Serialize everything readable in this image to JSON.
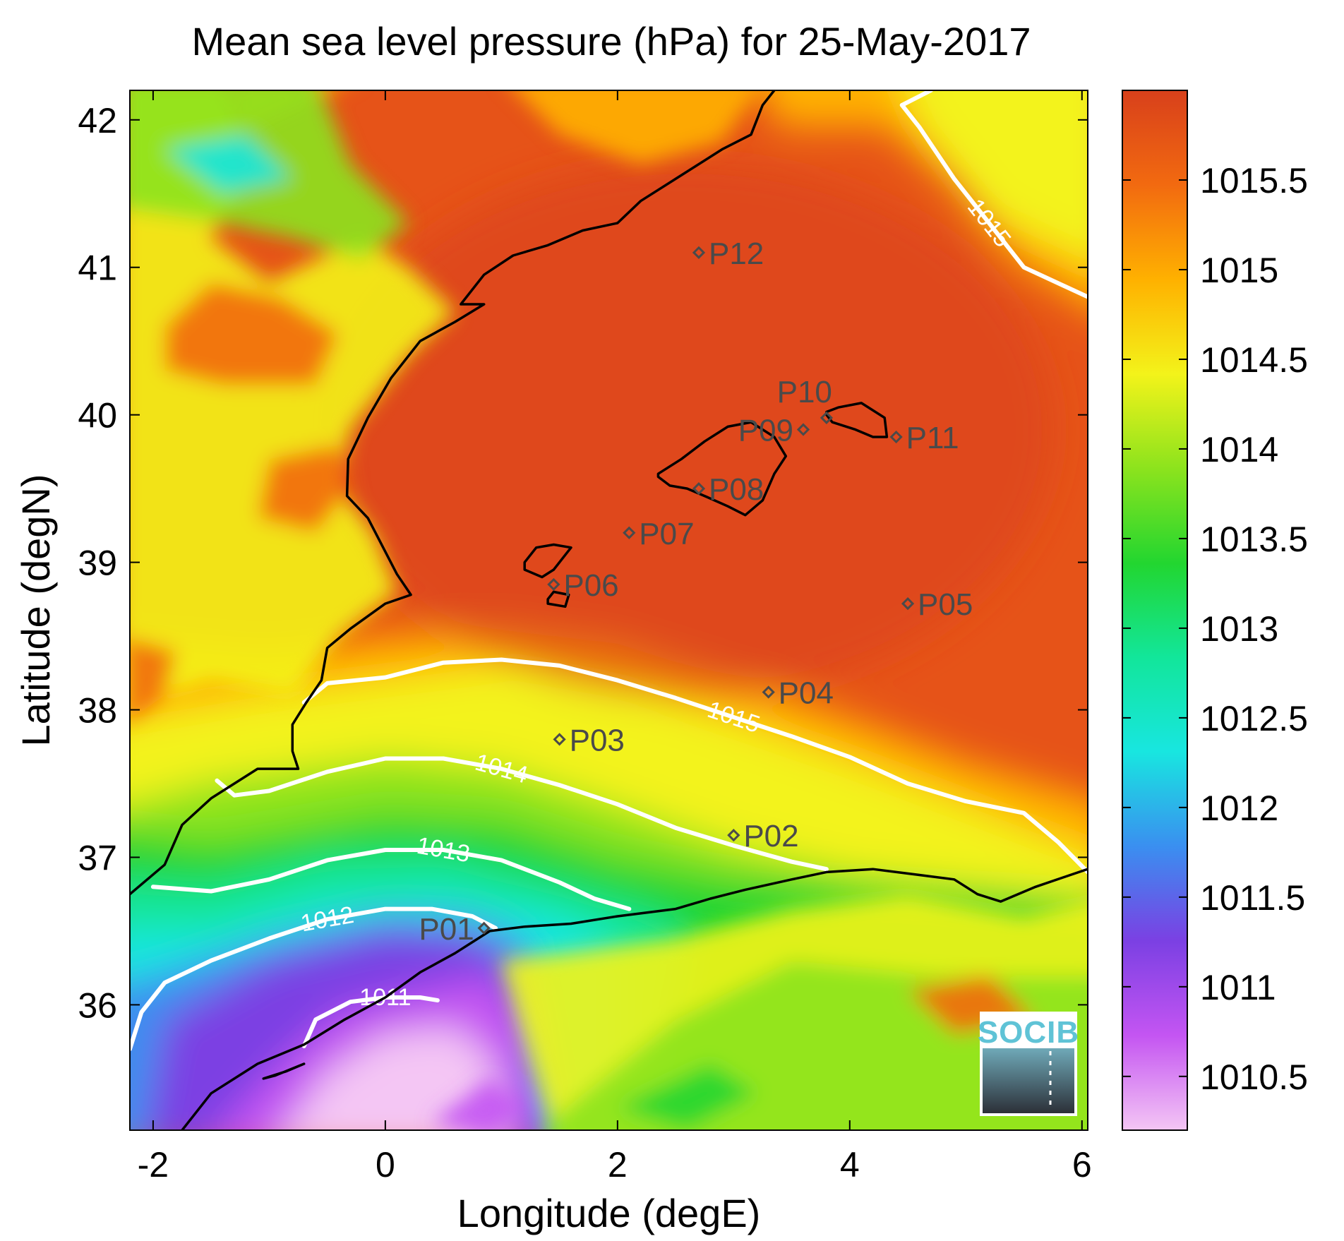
{
  "chart_data": {
    "type": "heatmap",
    "title": "Mean sea level pressure (hPa) for 25-May-2017",
    "xlabel": "Longitude (degE)",
    "ylabel": "Latitude (degN)",
    "xlim": [
      -2.2,
      6.05
    ],
    "ylim": [
      35.15,
      42.2
    ],
    "x_ticks": [
      -2,
      0,
      2,
      4,
      6
    ],
    "x_tick_labels": [
      "-2",
      "0",
      "2",
      "4",
      "6"
    ],
    "y_ticks": [
      36,
      37,
      38,
      39,
      40,
      41,
      42
    ],
    "y_tick_labels": [
      "36",
      "37",
      "38",
      "39",
      "40",
      "41",
      "42"
    ],
    "colorbar": {
      "range": [
        1010.2,
        1016.0
      ],
      "ticks": [
        1010.5,
        1011,
        1011.5,
        1012,
        1012.5,
        1013,
        1013.5,
        1014,
        1014.5,
        1015,
        1015.5
      ],
      "tick_labels": [
        "1010.5",
        "1011",
        "1011.5",
        "1012",
        "1012.5",
        "1013",
        "1013.5",
        "1014",
        "1014.5",
        "1015",
        "1015.5"
      ],
      "colors": [
        "#f4c6f4",
        "#c455f2",
        "#7b40e3",
        "#3a8ff0",
        "#18e6e0",
        "#12e69a",
        "#22d630",
        "#8ce31d",
        "#f3f31a",
        "#ffb100",
        "#f26a10",
        "#d8401b"
      ]
    },
    "contours": [
      {
        "level": "1011",
        "label": "1011",
        "points": [
          [
            -0.7,
            35.72
          ],
          [
            -0.6,
            35.9
          ],
          [
            -0.3,
            36.02
          ],
          [
            0.0,
            36.05
          ],
          [
            0.3,
            36.05
          ],
          [
            0.45,
            36.03
          ]
        ]
      },
      {
        "level": "1012",
        "label": "1012",
        "points": [
          [
            -2.2,
            35.7
          ],
          [
            -2.1,
            35.95
          ],
          [
            -1.9,
            36.15
          ],
          [
            -1.5,
            36.3
          ],
          [
            -1.0,
            36.45
          ],
          [
            -0.5,
            36.58
          ],
          [
            0.0,
            36.65
          ],
          [
            0.4,
            36.65
          ],
          [
            0.75,
            36.6
          ],
          [
            0.95,
            36.52
          ]
        ]
      },
      {
        "level": "1013",
        "label": "1013",
        "points": [
          [
            -2.0,
            36.8
          ],
          [
            -1.5,
            36.77
          ],
          [
            -1.0,
            36.85
          ],
          [
            -0.5,
            36.98
          ],
          [
            0.0,
            37.05
          ],
          [
            0.5,
            37.05
          ],
          [
            1.0,
            36.98
          ],
          [
            1.5,
            36.83
          ],
          [
            1.8,
            36.72
          ],
          [
            2.1,
            36.65
          ]
        ]
      },
      {
        "level": "1014",
        "label": "1014",
        "points": [
          [
            -1.45,
            37.52
          ],
          [
            -1.3,
            37.42
          ],
          [
            -1.0,
            37.45
          ],
          [
            -0.5,
            37.58
          ],
          [
            0.0,
            37.67
          ],
          [
            0.5,
            37.67
          ],
          [
            1.0,
            37.6
          ],
          [
            1.5,
            37.49
          ],
          [
            2.0,
            37.36
          ],
          [
            2.5,
            37.2
          ],
          [
            3.0,
            37.08
          ],
          [
            3.5,
            36.97
          ],
          [
            3.8,
            36.92
          ]
        ]
      },
      {
        "level": "1015",
        "label": "1015",
        "points": [
          [
            -0.7,
            38.05
          ],
          [
            -0.5,
            38.18
          ],
          [
            0.0,
            38.22
          ],
          [
            0.5,
            38.32
          ],
          [
            1.0,
            38.34
          ],
          [
            1.5,
            38.3
          ],
          [
            2.0,
            38.2
          ],
          [
            2.5,
            38.08
          ],
          [
            3.0,
            37.95
          ],
          [
            3.5,
            37.82
          ],
          [
            4.0,
            37.68
          ],
          [
            4.5,
            37.5
          ],
          [
            5.0,
            37.38
          ],
          [
            5.5,
            37.3
          ],
          [
            5.8,
            37.1
          ],
          [
            6.05,
            36.9
          ]
        ]
      },
      {
        "level": "1015",
        "label": "1015",
        "points": [
          [
            4.45,
            42.1
          ],
          [
            4.7,
            42.2
          ]
        ]
      },
      {
        "level": "1015",
        "label": "1015",
        "points": [
          [
            4.45,
            42.1
          ],
          [
            4.6,
            41.95
          ],
          [
            4.9,
            41.6
          ],
          [
            5.2,
            41.3
          ],
          [
            5.5,
            41.0
          ],
          [
            6.05,
            40.8
          ]
        ]
      }
    ],
    "stations": [
      {
        "id": "P01",
        "lon": 0.85,
        "lat": 36.52
      },
      {
        "id": "P02",
        "lon": 3.0,
        "lat": 37.15
      },
      {
        "id": "P03",
        "lon": 1.5,
        "lat": 37.8
      },
      {
        "id": "P04",
        "lon": 3.3,
        "lat": 38.12
      },
      {
        "id": "P05",
        "lon": 4.5,
        "lat": 38.72
      },
      {
        "id": "P06",
        "lon": 1.45,
        "lat": 38.85
      },
      {
        "id": "P07",
        "lon": 2.1,
        "lat": 39.2
      },
      {
        "id": "P08",
        "lon": 2.7,
        "lat": 39.5
      },
      {
        "id": "P09",
        "lon": 3.6,
        "lat": 39.9
      },
      {
        "id": "P10",
        "lon": 3.8,
        "lat": 39.98
      },
      {
        "id": "P11",
        "lon": 4.4,
        "lat": 39.85
      },
      {
        "id": "P12",
        "lon": 2.7,
        "lat": 41.1
      }
    ],
    "coastlines": [
      [
        [
          -2.2,
          36.75
        ],
        [
          -1.9,
          36.95
        ],
        [
          -1.75,
          37.22
        ],
        [
          -1.5,
          37.4
        ],
        [
          -1.1,
          37.6
        ],
        [
          -0.75,
          37.6
        ],
        [
          -0.8,
          37.72
        ],
        [
          -0.8,
          37.9
        ],
        [
          -0.68,
          38.05
        ],
        [
          -0.55,
          38.2
        ],
        [
          -0.5,
          38.42
        ],
        [
          -0.3,
          38.55
        ],
        [
          0.0,
          38.72
        ],
        [
          0.22,
          38.78
        ],
        [
          0.1,
          38.92
        ],
        [
          -0.15,
          39.3
        ],
        [
          -0.33,
          39.45
        ],
        [
          -0.32,
          39.7
        ],
        [
          -0.15,
          39.98
        ],
        [
          0.05,
          40.25
        ],
        [
          0.3,
          40.5
        ],
        [
          0.6,
          40.63
        ],
        [
          0.85,
          40.75
        ],
        [
          0.65,
          40.75
        ],
        [
          0.85,
          40.95
        ],
        [
          1.1,
          41.08
        ],
        [
          1.4,
          41.15
        ],
        [
          1.7,
          41.25
        ],
        [
          2.0,
          41.3
        ],
        [
          2.2,
          41.45
        ],
        [
          2.5,
          41.6
        ],
        [
          2.9,
          41.8
        ],
        [
          3.15,
          41.9
        ],
        [
          3.25,
          42.1
        ],
        [
          3.35,
          42.2
        ]
      ],
      [
        [
          -1.75,
          35.15
        ],
        [
          -1.5,
          35.4
        ],
        [
          -1.1,
          35.6
        ],
        [
          -0.7,
          35.73
        ],
        [
          -0.35,
          35.9
        ],
        [
          0.0,
          36.05
        ],
        [
          0.3,
          36.22
        ],
        [
          0.6,
          36.35
        ],
        [
          0.9,
          36.5
        ],
        [
          1.2,
          36.53
        ],
        [
          1.6,
          36.55
        ],
        [
          2.0,
          36.6
        ],
        [
          2.5,
          36.65
        ],
        [
          2.8,
          36.72
        ],
        [
          3.1,
          36.78
        ],
        [
          3.5,
          36.85
        ],
        [
          3.8,
          36.9
        ],
        [
          4.2,
          36.92
        ],
        [
          4.6,
          36.88
        ],
        [
          4.9,
          36.85
        ],
        [
          5.1,
          36.75
        ],
        [
          5.3,
          36.7
        ],
        [
          5.6,
          36.8
        ],
        [
          5.9,
          36.88
        ],
        [
          6.05,
          36.92
        ]
      ],
      [
        [
          2.35,
          39.58
        ],
        [
          2.45,
          39.52
        ],
        [
          2.6,
          39.5
        ],
        [
          2.75,
          39.45
        ],
        [
          2.95,
          39.38
        ],
        [
          3.1,
          39.32
        ],
        [
          3.25,
          39.42
        ],
        [
          3.35,
          39.6
        ],
        [
          3.45,
          39.72
        ],
        [
          3.35,
          39.85
        ],
        [
          3.15,
          39.95
        ],
        [
          2.95,
          39.92
        ],
        [
          2.75,
          39.82
        ],
        [
          2.55,
          39.7
        ],
        [
          2.35,
          39.6
        ]
      ],
      [
        [
          3.8,
          40.02
        ],
        [
          3.9,
          40.05
        ],
        [
          4.1,
          40.08
        ],
        [
          4.3,
          39.98
        ],
        [
          4.32,
          39.85
        ],
        [
          4.2,
          39.85
        ],
        [
          4.05,
          39.9
        ],
        [
          3.85,
          39.95
        ],
        [
          3.8,
          40.0
        ]
      ],
      [
        [
          1.2,
          38.95
        ],
        [
          1.35,
          38.9
        ],
        [
          1.45,
          38.95
        ],
        [
          1.55,
          39.05
        ],
        [
          1.6,
          39.1
        ],
        [
          1.45,
          39.12
        ],
        [
          1.3,
          39.1
        ],
        [
          1.2,
          39.0
        ]
      ],
      [
        [
          1.4,
          38.72
        ],
        [
          1.55,
          38.7
        ],
        [
          1.58,
          38.78
        ],
        [
          1.45,
          38.8
        ],
        [
          1.4,
          38.75
        ]
      ],
      [
        [
          -1.05,
          35.5
        ],
        [
          -0.85,
          35.55
        ],
        [
          -0.7,
          35.6
        ],
        [
          -0.95,
          35.52
        ],
        [
          -1.05,
          35.5
        ]
      ]
    ]
  }
}
